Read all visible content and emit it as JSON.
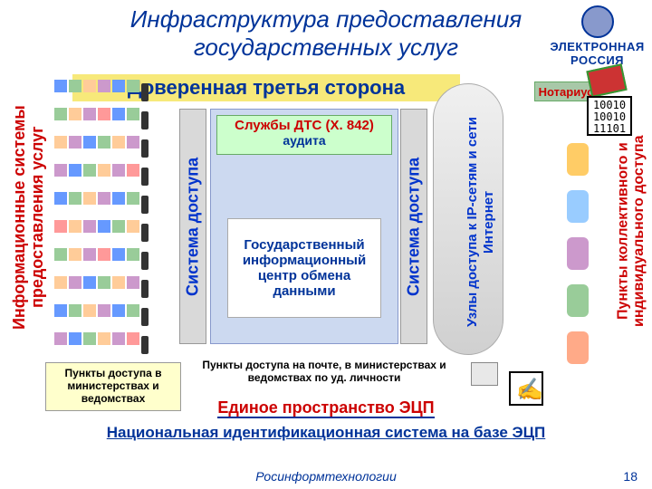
{
  "title_l1": "Инфраструктура предоставления",
  "title_l2": "государственных услуг",
  "logo": {
    "l1": "ЭЛЕКТРОННАЯ",
    "l2": "РОССИЯ"
  },
  "header": "Доверенная третья сторона",
  "left_label": "Информационные системы\nпредоставления услуг",
  "access_label": "Система доступа",
  "ip_label": "Узлы доступа к IP-сетям\nи сети Интернет",
  "pkd_label": "Пункты коллективного и\nиндивидуального доступа",
  "dts": {
    "title": "Службы ДТС (Х. 842)",
    "sub": "аудита"
  },
  "center": "Государственный информационный центр обмена данными",
  "bottom1": "Пункты доступа в министерствах и ведомствах",
  "bottom2": "Пункты доступа на почте, в министерствах и ведомствах по уд. личности",
  "ecp": "Единое пространство ЭЦП",
  "nat_id": "Национальная идентификационная система на базе ЭЦП",
  "footer": "Росинформтехнологии",
  "page": "18",
  "notary": "Нотариус",
  "bin": [
    "10010",
    "10010",
    "11101"
  ],
  "title_fontsize": "26px",
  "header_fontsize": "22px"
}
